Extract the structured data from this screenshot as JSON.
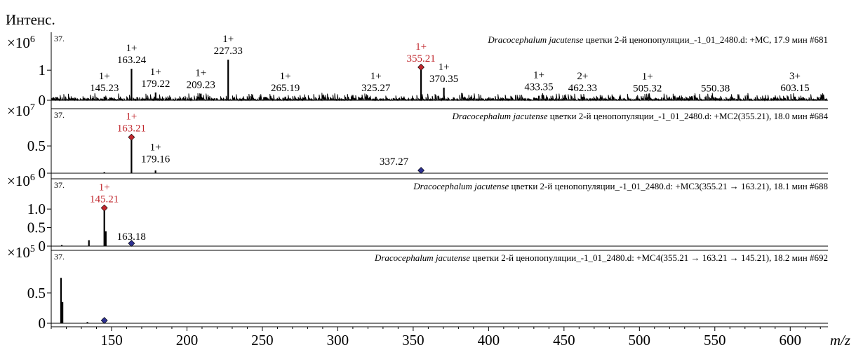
{
  "chart_data": {
    "type": "mass-spectrum",
    "y_axis_title": "Интенс.",
    "x_axis_title": "m/z",
    "xlim": [
      110,
      625
    ],
    "x_ticks": [
      150,
      200,
      250,
      300,
      350,
      400,
      450,
      500,
      550,
      600
    ],
    "colors": {
      "trace": "#000000",
      "highlight": "#c0272d",
      "precursor_marker": "#2e3192",
      "selected_marker": "#c0272d"
    },
    "panels": [
      {
        "corner_label": "37.",
        "multiplier_base": "×10",
        "multiplier_exp": "6",
        "title_italic": "Dracocephalum jacutense",
        "title_rest": " цветки 2-й ценопопуляции_-1_01_2480.d: +MC, 17.9 мин #681",
        "ylim": [
          0,
          1.75
        ],
        "y_ticks": [
          {
            "value": 0,
            "label": "0"
          },
          {
            "value": 1,
            "label": "1"
          }
        ],
        "noise": true,
        "peaks": [
          {
            "mz": 145.23,
            "intensity": 0.12
          },
          {
            "mz": 163.24,
            "intensity": 1.05
          },
          {
            "mz": 179.22,
            "intensity": 0.26
          },
          {
            "mz": 209.23,
            "intensity": 0.22
          },
          {
            "mz": 227.33,
            "intensity": 1.35
          },
          {
            "mz": 265.19,
            "intensity": 0.12
          },
          {
            "mz": 325.27,
            "intensity": 0.12
          },
          {
            "mz": 355.21,
            "intensity": 1.1
          },
          {
            "mz": 370.35,
            "intensity": 0.42
          },
          {
            "mz": 433.35,
            "intensity": 0.15
          },
          {
            "mz": 462.33,
            "intensity": 0.12
          },
          {
            "mz": 505.32,
            "intensity": 0.1
          },
          {
            "mz": 550.38,
            "intensity": 0.1
          },
          {
            "mz": 603.15,
            "intensity": 0.12
          }
        ],
        "labels": [
          {
            "mz": 145.23,
            "charge": "1+",
            "value": "145.23",
            "color": "black"
          },
          {
            "mz": 163.24,
            "charge": "1+",
            "value": "163.24",
            "color": "black"
          },
          {
            "mz": 179.22,
            "charge": "1+",
            "value": "179.22",
            "color": "black"
          },
          {
            "mz": 209.23,
            "charge": "1+",
            "value": "209.23",
            "color": "black"
          },
          {
            "mz": 227.33,
            "charge": "1+",
            "value": "227.33",
            "color": "black"
          },
          {
            "mz": 265.19,
            "charge": "1+",
            "value": "265.19",
            "color": "black"
          },
          {
            "mz": 325.27,
            "charge": "1+",
            "value": "325.27",
            "color": "black"
          },
          {
            "mz": 355.21,
            "charge": "1+",
            "value": "355.21",
            "color": "red"
          },
          {
            "mz": 370.35,
            "charge": "1+",
            "value": "370.35",
            "color": "black"
          },
          {
            "mz": 433.35,
            "charge": "1+",
            "value": "433.35",
            "color": "black"
          },
          {
            "mz": 462.33,
            "charge": "2+",
            "value": "462.33",
            "color": "black"
          },
          {
            "mz": 505.32,
            "charge": "1+",
            "value": "505.32",
            "color": "black"
          },
          {
            "mz": 550.38,
            "charge": "",
            "value": "550.38",
            "color": "black"
          },
          {
            "mz": 603.15,
            "charge": "3+",
            "value": "603.15",
            "color": "black"
          }
        ],
        "markers": [
          {
            "mz": 355.21,
            "intensity": 1.1,
            "kind": "selected"
          }
        ]
      },
      {
        "corner_label": "37.",
        "multiplier_base": "×10",
        "multiplier_exp": "7",
        "title_italic": "Dracocephalum jacutense",
        "title_rest": " цветки 2-й ценопопуляции_-1_01_2480.d: +MC2(355.21), 18.0 мин #684",
        "ylim": [
          0,
          0.9
        ],
        "y_ticks": [
          {
            "value": 0,
            "label": "0"
          },
          {
            "value": 0.5,
            "label": "0.5"
          }
        ],
        "noise": false,
        "peaks": [
          {
            "mz": 145.21,
            "intensity": 0.02
          },
          {
            "mz": 163.21,
            "intensity": 0.66
          },
          {
            "mz": 179.16,
            "intensity": 0.05
          }
        ],
        "labels": [
          {
            "mz": 163.21,
            "charge": "1+",
            "value": "163.21",
            "color": "red"
          },
          {
            "mz": 179.16,
            "charge": "1+",
            "value": "179.16",
            "color": "black"
          },
          {
            "mz": 337.27,
            "charge": "",
            "value": "337.27",
            "color": "black"
          }
        ],
        "markers": [
          {
            "mz": 163.21,
            "intensity": 0.66,
            "kind": "selected"
          },
          {
            "mz": 355.21,
            "intensity": 0.02,
            "kind": "precursor"
          }
        ]
      },
      {
        "corner_label": "37.",
        "multiplier_base": "×10",
        "multiplier_exp": "6",
        "title_italic": "Dracocephalum jacutense",
        "title_rest": " цветки 2-й ценопопуляции_-1_01_2480.d: +MC3(355.21 → 163.21), 18.1 мин #688",
        "ylim": [
          0,
          1.4
        ],
        "y_ticks": [
          {
            "value": 0,
            "label": "0"
          },
          {
            "value": 0.5,
            "label": "0.5"
          },
          {
            "value": 1.0,
            "label": "1.0"
          }
        ],
        "noise": false,
        "peaks": [
          {
            "mz": 117.0,
            "intensity": 0.03
          },
          {
            "mz": 135.0,
            "intensity": 0.16
          },
          {
            "mz": 145.21,
            "intensity": 1.03
          },
          {
            "mz": 146.2,
            "intensity": 0.4
          }
        ],
        "labels": [
          {
            "mz": 145.21,
            "charge": "1+",
            "value": "145.21",
            "color": "red"
          },
          {
            "mz": 163.18,
            "charge": "",
            "value": "163.18",
            "color": "black"
          }
        ],
        "markers": [
          {
            "mz": 145.21,
            "intensity": 1.03,
            "kind": "selected"
          },
          {
            "mz": 163.21,
            "intensity": 0.03,
            "kind": "precursor"
          }
        ]
      },
      {
        "corner_label": "37.",
        "multiplier_base": "×10",
        "multiplier_exp": "5",
        "title_italic": "Dracocephalum jacutense",
        "title_rest": " цветки 2-й ценопопуляции_-1_01_2480.d: +MC4(355.21 → 163.21 → 145.21), 18.2 мин #692",
        "ylim": [
          0,
          0.95
        ],
        "y_ticks": [
          {
            "value": 0,
            "label": "0"
          },
          {
            "value": 0.5,
            "label": "0.5"
          }
        ],
        "noise": false,
        "peaks": [
          {
            "mz": 116.5,
            "intensity": 0.75
          },
          {
            "mz": 117.5,
            "intensity": 0.35
          },
          {
            "mz": 134.0,
            "intensity": 0.02
          }
        ],
        "labels": [],
        "markers": [
          {
            "mz": 145.21,
            "intensity": 0.03,
            "kind": "precursor"
          }
        ]
      }
    ]
  }
}
